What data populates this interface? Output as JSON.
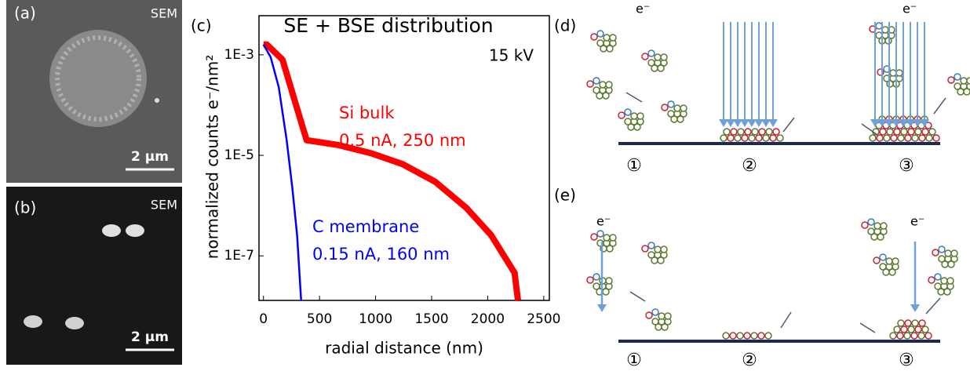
{
  "chart_data": {
    "type": "line",
    "title": "SE + BSE distribution",
    "x_label": "radial distance (nm)",
    "y_label": "normalized counts e⁻/nm²",
    "log_y": true,
    "xlim": [
      -40,
      2550
    ],
    "ylim": [
      1.3e-08,
      0.006
    ],
    "xticks": [
      0,
      500,
      1000,
      1500,
      2000,
      2500
    ],
    "yticks": [
      {
        "value": 0.001,
        "label": "1E-3"
      },
      {
        "value": 1e-05,
        "label": "1E-5"
      },
      {
        "value": 1e-07,
        "label": "1E-7"
      }
    ],
    "annotations": [
      "15 kV",
      "Si bulk",
      "0.5 nA, 250 nm",
      "C membrane",
      "0.15 nA, 160 nm"
    ],
    "series": [
      {
        "color": "#ff0000",
        "x": [
          0,
          30,
          170,
          280,
          385,
          670,
          960,
          1240,
          1530,
          1810,
          2030,
          2240,
          2270
        ],
        "values": [
          0.0016,
          0.0016,
          0.0008,
          0.00012,
          2e-05,
          1.6e-05,
          1.1e-05,
          6.7e-06,
          3e-06,
          9e-07,
          2.6e-07,
          4.6e-08,
          1.3e-08
        ]
      },
      {
        "color": "#0000ff",
        "x": [
          0,
          64,
          136,
          207,
          257,
          300,
          336
        ],
        "values": [
          0.0016,
          0.0009,
          0.00023,
          2e-05,
          2.3e-06,
          2.6e-07,
          1.3e-08
        ]
      }
    ]
  },
  "panels": {
    "a": {
      "label": "(a)",
      "tag": "SEM",
      "scale": "2 µm"
    },
    "b": {
      "label": "(b)",
      "tag": "SEM",
      "scale": "2 µm"
    },
    "c": {
      "label": "(c)"
    },
    "d": {
      "label": "(d)",
      "electrons": [
        "e⁻",
        "e⁻"
      ],
      "steps": [
        "①",
        "②",
        "③"
      ]
    },
    "e": {
      "label": "(e)",
      "electrons": [
        "e⁻",
        "e⁻"
      ],
      "steps": [
        "①",
        "②",
        "③"
      ]
    }
  }
}
